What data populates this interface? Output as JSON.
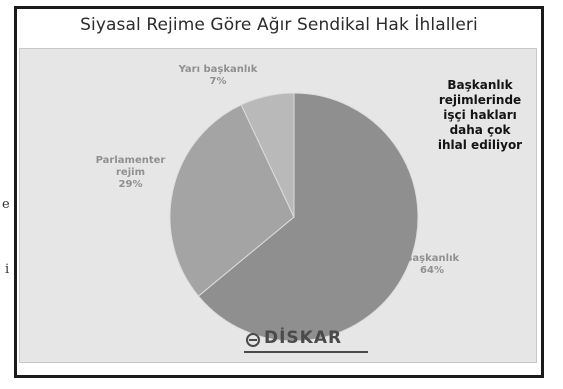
{
  "page": {
    "margin_fragments": [
      "e",
      "i"
    ]
  },
  "chart_data": {
    "type": "pie",
    "title": "Siyasal Rejime Göre Ağır Sendikal Hak İhlalleri",
    "slices": [
      {
        "label": "Başkanlık",
        "value": 64,
        "value_label": "64%",
        "color": "#8f8f8f"
      },
      {
        "label": "Parlamenter rejim",
        "value": 29,
        "value_label": "29%",
        "color": "#a4a4a4"
      },
      {
        "label": "Yarı başkanlık",
        "value": 7,
        "value_label": "7%",
        "color": "#b9b9b9"
      }
    ],
    "annotation": "Başkanlık rejimlerinde işçi hakları daha çok ihlal ediliyor",
    "annotation_lines": [
      "Başkanlık",
      "rejimlerinde",
      "işçi hakları",
      "daha çok",
      "ihlal ediliyor"
    ],
    "logo_text": "DİSKAR"
  }
}
